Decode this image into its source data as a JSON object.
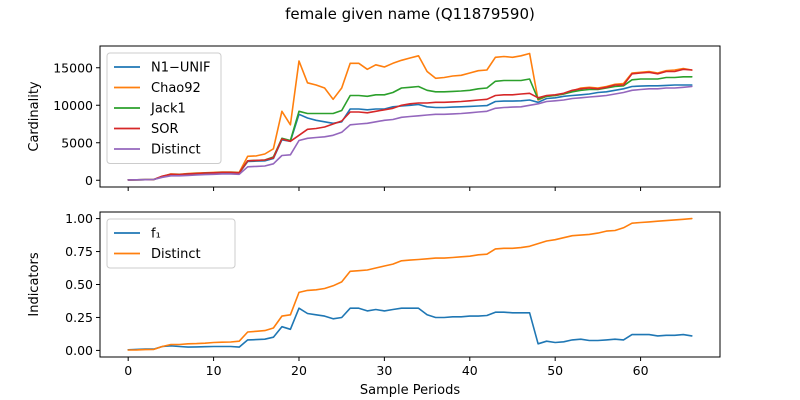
{
  "chart_data": [
    {
      "type": "line",
      "title": "female given name (Q11879590)",
      "xlabel": "",
      "ylabel": "Cardinality",
      "xlim": [
        -3.3,
        69.3
      ],
      "ylim": [
        -900,
        17900
      ],
      "xticks": [
        0,
        10,
        20,
        30,
        40,
        50,
        60
      ],
      "yticks": [
        0,
        5000,
        10000,
        15000
      ],
      "ytick_labels": [
        "0",
        "5000",
        "10000",
        "15000"
      ],
      "show_xtick_labels": false,
      "grid": false,
      "legend_position": "upper-left",
      "x": [
        0,
        1,
        2,
        3,
        4,
        5,
        6,
        7,
        8,
        9,
        10,
        11,
        12,
        13,
        14,
        15,
        16,
        17,
        18,
        19,
        20,
        21,
        22,
        23,
        24,
        25,
        26,
        27,
        28,
        29,
        30,
        31,
        32,
        33,
        34,
        35,
        36,
        37,
        38,
        39,
        40,
        41,
        42,
        43,
        44,
        45,
        46,
        47,
        48,
        49,
        50,
        51,
        52,
        53,
        54,
        55,
        56,
        57,
        58,
        59,
        60,
        61,
        62,
        63,
        64,
        65,
        66
      ],
      "series": [
        {
          "name": "N1−UNIF",
          "color": "#1f77b4",
          "values": [
            50,
            60,
            80,
            100,
            500,
            750,
            700,
            800,
            850,
            900,
            950,
            1000,
            1000,
            950,
            2500,
            2550,
            2600,
            2900,
            5400,
            5200,
            8800,
            8300,
            8000,
            7800,
            7600,
            7800,
            9500,
            9500,
            9400,
            9500,
            9500,
            9800,
            9900,
            10000,
            10100,
            9800,
            9700,
            9700,
            9750,
            9800,
            9850,
            9900,
            9950,
            10500,
            10550,
            10550,
            10600,
            10700,
            10400,
            10900,
            11000,
            11200,
            11300,
            11400,
            11500,
            11700,
            11800,
            12000,
            12200,
            12500,
            12550,
            12600,
            12600,
            12650,
            12700,
            12700,
            12700
          ]
        },
        {
          "name": "Chao92",
          "color": "#ff7f0e",
          "values": [
            50,
            60,
            80,
            100,
            500,
            850,
            800,
            900,
            950,
            1000,
            1050,
            1100,
            1100,
            1050,
            3200,
            3250,
            3500,
            4200,
            9200,
            7400,
            15900,
            13000,
            12700,
            12300,
            10800,
            12300,
            15600,
            15600,
            14800,
            15400,
            15100,
            15600,
            16000,
            16300,
            16600,
            14500,
            13600,
            13700,
            13900,
            14000,
            14300,
            14600,
            14700,
            16400,
            16500,
            16400,
            16600,
            16900,
            10700,
            11200,
            11300,
            11500,
            11900,
            12300,
            12400,
            12300,
            12500,
            12800,
            12900,
            14300,
            14400,
            14500,
            14300,
            14600,
            14700,
            14900,
            14700
          ]
        },
        {
          "name": "Jack1",
          "color": "#2ca02c",
          "values": [
            50,
            60,
            80,
            100,
            500,
            800,
            750,
            850,
            900,
            950,
            1000,
            1050,
            1050,
            1000,
            2600,
            2650,
            2700,
            3100,
            5600,
            5300,
            9200,
            8900,
            8900,
            8900,
            8900,
            9300,
            11300,
            11300,
            11200,
            11400,
            11400,
            11700,
            12300,
            12400,
            12500,
            12000,
            11800,
            11800,
            11850,
            11900,
            12000,
            12200,
            12300,
            13200,
            13300,
            13300,
            13300,
            13500,
            10800,
            11200,
            11300,
            11500,
            11800,
            12000,
            12100,
            12100,
            12300,
            12500,
            12600,
            13400,
            13500,
            13500,
            13500,
            13700,
            13700,
            13800,
            13800
          ]
        },
        {
          "name": "SOR",
          "color": "#d62728",
          "values": [
            50,
            60,
            80,
            100,
            550,
            800,
            750,
            850,
            900,
            950,
            1000,
            1050,
            1050,
            1000,
            2600,
            2650,
            2700,
            3000,
            5500,
            5200,
            6000,
            6800,
            6900,
            7100,
            7500,
            7900,
            9100,
            9100,
            9000,
            9200,
            9400,
            9600,
            10000,
            10200,
            10300,
            10300,
            10400,
            10400,
            10450,
            10500,
            10600,
            10700,
            10800,
            11300,
            11400,
            11400,
            11500,
            11600,
            11000,
            11300,
            11400,
            11600,
            12000,
            12200,
            12300,
            12200,
            12400,
            12700,
            12700,
            14200,
            14300,
            14400,
            14200,
            14500,
            14500,
            14800,
            14700
          ]
        },
        {
          "name": "Distinct",
          "color": "#9467bd",
          "values": [
            50,
            60,
            80,
            100,
            400,
            600,
            600,
            650,
            700,
            750,
            800,
            850,
            850,
            800,
            1800,
            1850,
            1900,
            2200,
            3300,
            3400,
            5300,
            5600,
            5700,
            5800,
            6000,
            6400,
            7400,
            7500,
            7600,
            7800,
            8000,
            8100,
            8400,
            8500,
            8600,
            8700,
            8800,
            8800,
            8850,
            8900,
            9000,
            9100,
            9200,
            9600,
            9700,
            9750,
            9800,
            10000,
            10200,
            10500,
            10600,
            10700,
            10900,
            11000,
            11100,
            11200,
            11300,
            11500,
            11700,
            12000,
            12100,
            12200,
            12200,
            12300,
            12300,
            12400,
            12500
          ]
        }
      ]
    },
    {
      "type": "line",
      "title": "",
      "xlabel": "Sample Periods",
      "ylabel": "Indicators",
      "xlim": [
        -3.3,
        69.3
      ],
      "ylim": [
        -0.05,
        1.05
      ],
      "xticks": [
        0,
        10,
        20,
        30,
        40,
        50,
        60
      ],
      "xtick_labels": [
        "0",
        "10",
        "20",
        "30",
        "40",
        "50",
        "60"
      ],
      "yticks": [
        0,
        0.25,
        0.5,
        0.75,
        1.0
      ],
      "ytick_labels": [
        "0.00",
        "0.25",
        "0.50",
        "0.75",
        "1.00"
      ],
      "show_xtick_labels": true,
      "grid": false,
      "legend_position": "upper-left",
      "x": [
        0,
        1,
        2,
        3,
        4,
        5,
        6,
        7,
        8,
        9,
        10,
        11,
        12,
        13,
        14,
        15,
        16,
        17,
        18,
        19,
        20,
        21,
        22,
        23,
        24,
        25,
        26,
        27,
        28,
        29,
        30,
        31,
        32,
        33,
        34,
        35,
        36,
        37,
        38,
        39,
        40,
        41,
        42,
        43,
        44,
        45,
        46,
        47,
        48,
        49,
        50,
        51,
        52,
        53,
        54,
        55,
        56,
        57,
        58,
        59,
        60,
        61,
        62,
        63,
        64,
        65,
        66
      ],
      "series": [
        {
          "name": "f₁",
          "color": "#1f77b4",
          "values": [
            0.005,
            0.008,
            0.01,
            0.01,
            0.03,
            0.035,
            0.03,
            0.025,
            0.027,
            0.028,
            0.03,
            0.03,
            0.03,
            0.025,
            0.08,
            0.082,
            0.085,
            0.1,
            0.18,
            0.16,
            0.32,
            0.28,
            0.27,
            0.26,
            0.24,
            0.25,
            0.32,
            0.32,
            0.3,
            0.31,
            0.3,
            0.31,
            0.32,
            0.32,
            0.32,
            0.27,
            0.25,
            0.25,
            0.255,
            0.255,
            0.26,
            0.26,
            0.265,
            0.29,
            0.29,
            0.285,
            0.285,
            0.285,
            0.05,
            0.07,
            0.06,
            0.065,
            0.08,
            0.085,
            0.075,
            0.075,
            0.08,
            0.085,
            0.08,
            0.12,
            0.12,
            0.12,
            0.11,
            0.115,
            0.115,
            0.12,
            0.11
          ]
        },
        {
          "name": "Distinct",
          "color": "#ff7f0e",
          "values": [
            0.003,
            0.004,
            0.006,
            0.008,
            0.03,
            0.045,
            0.045,
            0.05,
            0.052,
            0.055,
            0.06,
            0.062,
            0.064,
            0.07,
            0.14,
            0.145,
            0.15,
            0.17,
            0.26,
            0.27,
            0.44,
            0.455,
            0.46,
            0.47,
            0.49,
            0.52,
            0.6,
            0.605,
            0.61,
            0.625,
            0.64,
            0.655,
            0.68,
            0.685,
            0.69,
            0.695,
            0.7,
            0.7,
            0.705,
            0.71,
            0.715,
            0.725,
            0.73,
            0.77,
            0.775,
            0.775,
            0.78,
            0.79,
            0.81,
            0.83,
            0.84,
            0.855,
            0.87,
            0.875,
            0.88,
            0.89,
            0.905,
            0.91,
            0.93,
            0.965,
            0.97,
            0.975,
            0.98,
            0.985,
            0.99,
            0.995,
            1.0
          ]
        }
      ]
    }
  ]
}
